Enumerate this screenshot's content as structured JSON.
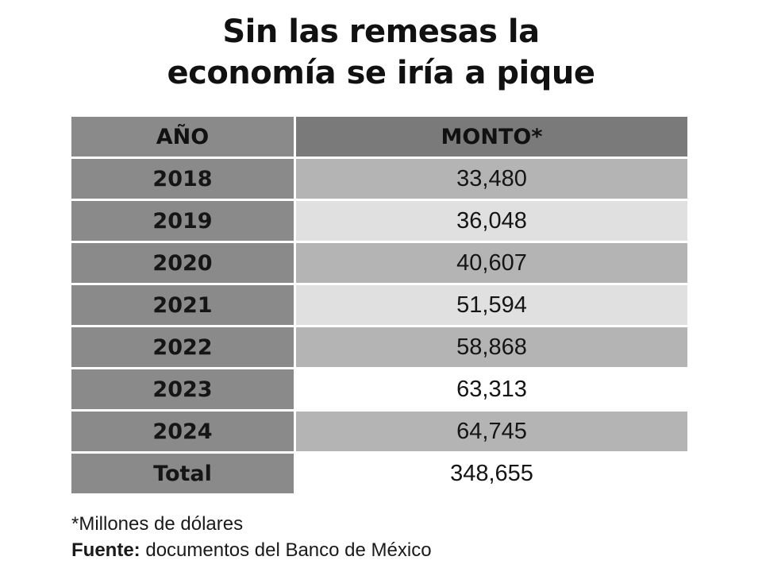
{
  "chart_data": {
    "type": "table",
    "title_lines": [
      "Sin las remesas la",
      "economía se iría a pique"
    ],
    "columns": [
      "AÑO",
      "MONTO*"
    ],
    "rows": [
      {
        "year": "2018",
        "amount": "33,480",
        "value": 33480
      },
      {
        "year": "2019",
        "amount": "36,048",
        "value": 36048
      },
      {
        "year": "2020",
        "amount": "40,607",
        "value": 40607
      },
      {
        "year": "2021",
        "amount": "51,594",
        "value": 51594
      },
      {
        "year": "2022",
        "amount": "58,868",
        "value": 58868
      },
      {
        "year": "2023",
        "amount": "63,313",
        "value": 63313
      },
      {
        "year": "2024",
        "amount": "64,745",
        "value": 64745
      }
    ],
    "total": {
      "label": "Total",
      "amount": "348,655",
      "value": 348655
    },
    "footnote": "*Millones de dólares",
    "source_label": "Fuente:",
    "source_text": "documentos del Banco de México"
  },
  "colors": {
    "header_bg": "#7a7a7a",
    "year_bg": "#8a8a8a",
    "amount_dark": "#b4b4b4",
    "amount_light": "#e0e0e0",
    "amount_none": "#ffffff"
  },
  "row_shading": [
    "dark",
    "light",
    "dark",
    "light",
    "dark",
    "none",
    "dark"
  ]
}
